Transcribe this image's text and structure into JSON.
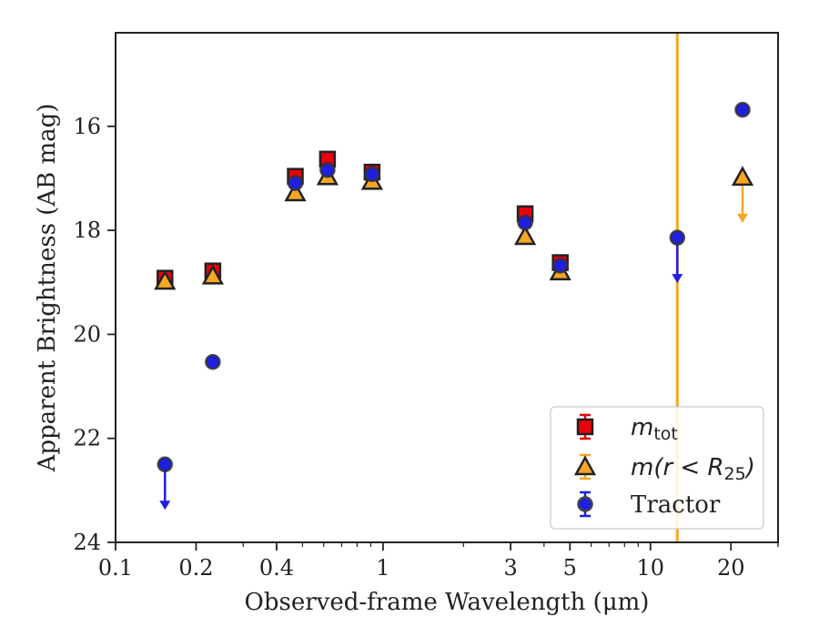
{
  "chart_data": {
    "type": "scatter",
    "xlabel": "Observed-frame Wavelength (μm)",
    "ylabel": "Apparent Brightness (AB mag)",
    "xscale": "log",
    "xlim": [
      0.1,
      30
    ],
    "ylim": [
      24,
      14.2
    ],
    "y_inverted": true,
    "x_ticks": [
      {
        "value": 0.1,
        "label": "0.1"
      },
      {
        "value": 0.2,
        "label": "0.2"
      },
      {
        "value": 0.4,
        "label": "0.4"
      },
      {
        "value": 1,
        "label": "1"
      },
      {
        "value": 3,
        "label": "3"
      },
      {
        "value": 5,
        "label": "5"
      },
      {
        "value": 10,
        "label": "10"
      },
      {
        "value": 20,
        "label": "20"
      }
    ],
    "y_ticks": [
      {
        "value": 16,
        "label": "16"
      },
      {
        "value": 18,
        "label": "18"
      },
      {
        "value": 20,
        "label": "20"
      },
      {
        "value": 22,
        "label": "22"
      },
      {
        "value": 24,
        "label": "24"
      }
    ],
    "vertical_line": {
      "x": 12.6,
      "color": "#f5a623"
    },
    "legend_position": "lower-right",
    "series": [
      {
        "name": "m_tot",
        "marker": "square",
        "color": "#e8000b",
        "edge": "#222222",
        "points": [
          {
            "x": 0.153,
            "y": 18.92
          },
          {
            "x": 0.231,
            "y": 18.78
          },
          {
            "x": 0.47,
            "y": 16.96
          },
          {
            "x": 0.62,
            "y": 16.63
          },
          {
            "x": 0.91,
            "y": 16.88
          },
          {
            "x": 3.4,
            "y": 17.68
          },
          {
            "x": 4.6,
            "y": 18.62
          }
        ]
      },
      {
        "name": "m(r < R25)",
        "marker": "triangle",
        "color": "#f5a623",
        "edge": "#222222",
        "points": [
          {
            "x": 0.153,
            "y": 18.98
          },
          {
            "x": 0.231,
            "y": 18.88
          },
          {
            "x": 0.47,
            "y": 17.28
          },
          {
            "x": 0.62,
            "y": 16.97
          },
          {
            "x": 0.91,
            "y": 17.06
          },
          {
            "x": 3.4,
            "y": 18.12
          },
          {
            "x": 4.6,
            "y": 18.8
          },
          {
            "x": 22.1,
            "y": 16.98,
            "upper_limit": true
          }
        ]
      },
      {
        "name": "Tractor",
        "marker": "circle",
        "color": "#1f1fe0",
        "edge": "#333333",
        "points": [
          {
            "x": 0.153,
            "y": 22.5,
            "upper_limit": true
          },
          {
            "x": 0.231,
            "y": 20.53
          },
          {
            "x": 0.47,
            "y": 17.09
          },
          {
            "x": 0.62,
            "y": 16.84
          },
          {
            "x": 0.91,
            "y": 16.92
          },
          {
            "x": 3.4,
            "y": 17.85
          },
          {
            "x": 4.6,
            "y": 18.68
          },
          {
            "x": 12.6,
            "y": 18.14,
            "upper_limit": true
          },
          {
            "x": 22.1,
            "y": 15.68
          }
        ]
      }
    ]
  },
  "legend": {
    "mtot_base": "m",
    "mtot_sub": "tot",
    "mr_prefix": "m(r < R",
    "mr_sub": "25",
    "mr_suffix": ")",
    "tractor": "Tractor"
  }
}
